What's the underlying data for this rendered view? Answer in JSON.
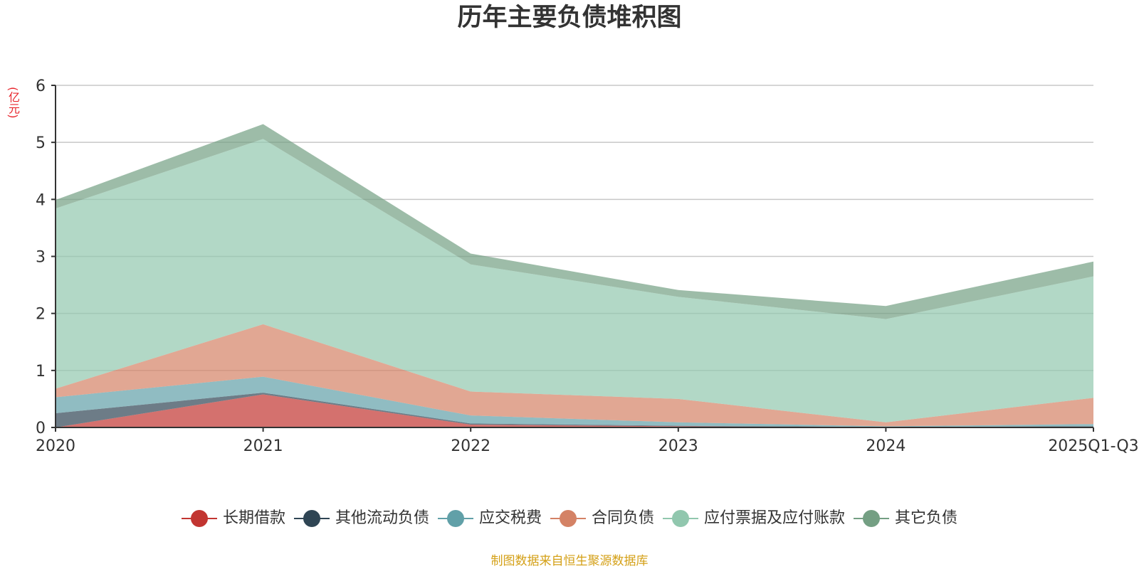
{
  "chart_data": {
    "type": "area",
    "stacked": true,
    "title": "历年主要负债堆积图",
    "ylabel": "(亿元)",
    "xlabel": "",
    "categories": [
      "2020",
      "2021",
      "2022",
      "2023",
      "2024",
      "2025Q1-Q3"
    ],
    "ylim": [
      0,
      6
    ],
    "yticks": [
      0,
      1,
      2,
      3,
      4,
      5,
      6
    ],
    "grid": true,
    "legend_position": "bottom",
    "series": [
      {
        "name": "长期借款",
        "color": "#c23531",
        "values": [
          0,
          0.58,
          0.05,
          0.02,
          0,
          0
        ]
      },
      {
        "name": "其他流动负债",
        "color": "#2f4554",
        "values": [
          0.25,
          0.03,
          0.02,
          0.01,
          0.01,
          0.02
        ]
      },
      {
        "name": "应交税费",
        "color": "#61a0a8",
        "values": [
          0.28,
          0.28,
          0.14,
          0.06,
          0.01,
          0.04
        ]
      },
      {
        "name": "合同负债",
        "color": "#d48265",
        "values": [
          0.15,
          0.92,
          0.42,
          0.41,
          0.07,
          0.46
        ]
      },
      {
        "name": "应付票据及应付账款",
        "color": "#91c7ae",
        "values": [
          3.16,
          3.25,
          2.23,
          1.79,
          1.81,
          2.13
        ]
      },
      {
        "name": "其它负债",
        "color": "#749f83",
        "values": [
          0.15,
          0.26,
          0.19,
          0.12,
          0.23,
          0.26
        ]
      }
    ]
  },
  "source_note": "制图数据来自恒生聚源数据库"
}
